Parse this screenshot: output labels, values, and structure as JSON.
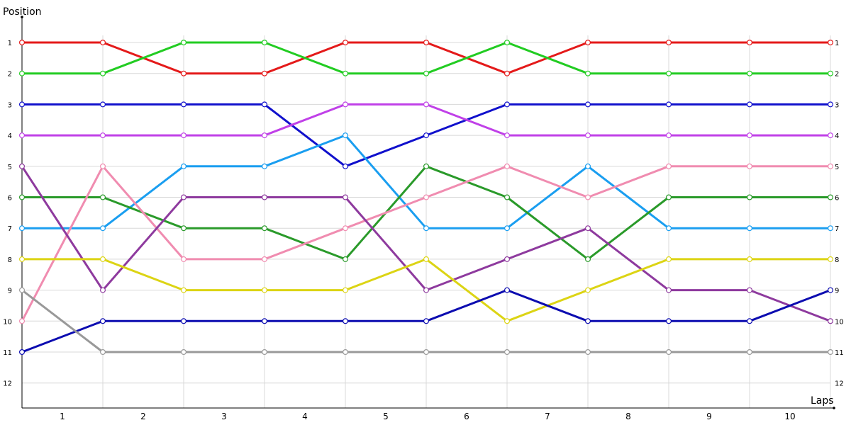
{
  "chart_data": {
    "type": "line",
    "ylabel": "Position",
    "xlabel": "Laps",
    "y_ticks": [
      "1",
      "2",
      "3",
      "4",
      "5",
      "6",
      "7",
      "8",
      "9",
      "10",
      "11",
      "12"
    ],
    "x_tick_labels": [
      "1",
      "2",
      "3",
      "4",
      "5",
      "6",
      "7",
      "8",
      "9",
      "10"
    ],
    "x_points": [
      0,
      1,
      2,
      3,
      4,
      5,
      6,
      7,
      8,
      9,
      10
    ],
    "ylim": [
      1,
      12
    ],
    "y_inverted": true,
    "grid": true,
    "legend": "none",
    "series": [
      {
        "color": "#e41a1a",
        "values": [
          1,
          1,
          2,
          2,
          1,
          1,
          2,
          1,
          1,
          1,
          1
        ]
      },
      {
        "color": "#22cc22",
        "values": [
          2,
          2,
          1,
          1,
          2,
          2,
          1,
          2,
          2,
          2,
          2
        ]
      },
      {
        "color": "#1010cc",
        "values": [
          3,
          3,
          3,
          3,
          5,
          4,
          3,
          3,
          3,
          3,
          3
        ]
      },
      {
        "color": "#c040e8",
        "values": [
          4,
          4,
          4,
          4,
          3,
          3,
          4,
          4,
          4,
          4,
          4
        ]
      },
      {
        "color": "#1a9ef0",
        "values": [
          7,
          7,
          5,
          5,
          4,
          7,
          7,
          5,
          7,
          7,
          7
        ]
      },
      {
        "color": "#2a9a2a",
        "values": [
          6,
          6,
          7,
          7,
          8,
          5,
          6,
          8,
          6,
          6,
          6
        ]
      },
      {
        "color": "#f08cb0",
        "values": [
          10,
          5,
          8,
          8,
          7,
          6,
          5,
          6,
          5,
          5,
          5
        ]
      },
      {
        "color": "#8e3a9e",
        "values": [
          5,
          9,
          6,
          6,
          6,
          9,
          8,
          7,
          9,
          9,
          10
        ]
      },
      {
        "color": "#dcd414",
        "values": [
          8,
          8,
          9,
          9,
          9,
          8,
          10,
          9,
          8,
          8,
          8
        ]
      },
      {
        "color": "#0c0cb0",
        "values": [
          11,
          10,
          10,
          10,
          10,
          10,
          9,
          10,
          10,
          10,
          9
        ]
      },
      {
        "color": "#999999",
        "values": [
          9,
          11,
          11,
          11,
          11,
          11,
          11,
          11,
          11,
          11,
          11
        ]
      }
    ]
  }
}
